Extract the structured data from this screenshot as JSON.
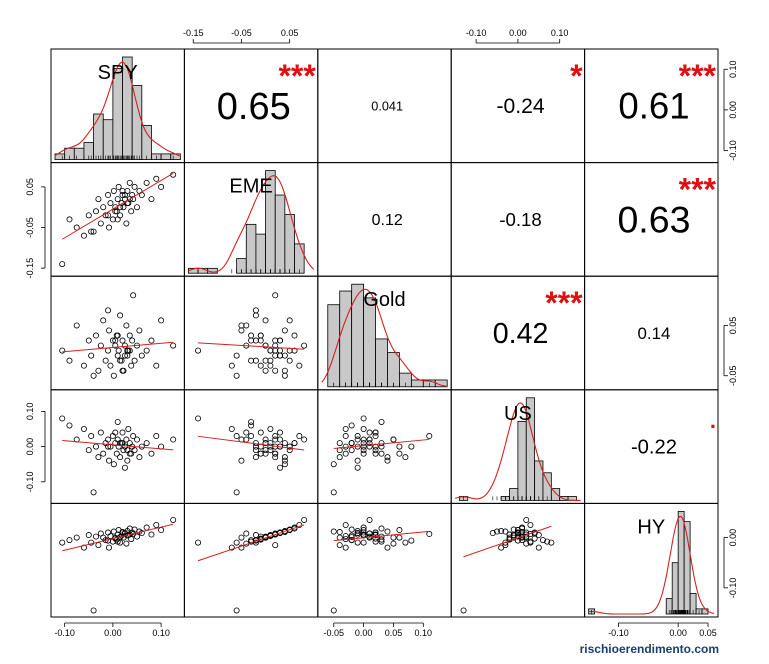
{
  "chart_data": {
    "type": "scatter-matrix",
    "variables": [
      "SPY",
      "EME",
      "Gold",
      "US",
      "HY"
    ],
    "watermark": "rischioerendimento.com",
    "axes": {
      "SPY": {
        "range": [
          -0.12,
          0.14
        ],
        "ticks": [
          -0.1,
          0.0,
          0.1
        ],
        "tick_labels": [
          "-0.10",
          "0.00",
          "0.10"
        ]
      },
      "EME": {
        "range": [
          -0.16,
          0.1
        ],
        "ticks": [
          -0.15,
          -0.05,
          0.05
        ],
        "tick_labels": [
          "-0.15",
          "-0.05",
          "0.05"
        ]
      },
      "Gold": {
        "range": [
          -0.07,
          0.14
        ],
        "ticks": [
          -0.05,
          0.0,
          0.05,
          0.1
        ],
        "tick_labels": [
          "-0.05",
          "0.00",
          "0.05",
          "0.10"
        ]
      },
      "US": {
        "range": [
          -0.15,
          0.15
        ],
        "ticks": [
          -0.1,
          0.0,
          0.1
        ],
        "tick_labels": [
          "-0.10",
          "0.00",
          "0.10"
        ]
      },
      "HY": {
        "range": [
          -0.15,
          0.06
        ],
        "ticks": [
          -0.1,
          0.0,
          0.05
        ],
        "tick_labels": [
          "-0.10",
          "0.00",
          "0.05"
        ]
      }
    },
    "top_axis_ticks": {
      "EME": [
        "-0.15",
        "-0.05",
        "0.05"
      ],
      "US": [
        "-0.10",
        "0.00",
        "0.10"
      ]
    },
    "bottom_axis_ticks": {
      "SPY": [
        "-0.10",
        "0.00",
        "0.10"
      ],
      "Gold": [
        "-0.05",
        "0.00",
        "0.05",
        "0.10"
      ],
      "HY": [
        "-0.10",
        "0.00",
        "0.05"
      ]
    },
    "right_axis_ticks": {
      "SPY": [
        "0.10",
        "0.00",
        "-0.10"
      ],
      "Gold": [
        "0.05",
        "-0.05"
      ],
      "HY": [
        "0.00",
        "-0.10"
      ]
    },
    "left_axis_ticks": {
      "EME": [
        "0.05",
        "-0.05",
        "-0.15"
      ],
      "US": [
        "0.10",
        "0.00",
        "-0.10"
      ]
    },
    "correlations": [
      {
        "row": 0,
        "col": 1,
        "value": "0.65",
        "stars": "***"
      },
      {
        "row": 0,
        "col": 2,
        "value": "0.041",
        "stars": ""
      },
      {
        "row": 0,
        "col": 3,
        "value": "-0.24",
        "stars": "*"
      },
      {
        "row": 0,
        "col": 4,
        "value": "0.61",
        "stars": "***"
      },
      {
        "row": 1,
        "col": 2,
        "value": "0.12",
        "stars": ""
      },
      {
        "row": 1,
        "col": 3,
        "value": "-0.18",
        "stars": ""
      },
      {
        "row": 1,
        "col": 4,
        "value": "0.63",
        "stars": "***"
      },
      {
        "row": 2,
        "col": 3,
        "value": "0.42",
        "stars": "***"
      },
      {
        "row": 2,
        "col": 4,
        "value": "0.14",
        "stars": ""
      },
      {
        "row": 3,
        "col": 4,
        "value": "-0.22",
        "stars": "."
      }
    ],
    "histograms": {
      "SPY": {
        "bins": [
          -0.12,
          -0.1,
          -0.08,
          -0.06,
          -0.04,
          -0.02,
          0.0,
          0.02,
          0.04,
          0.06,
          0.08,
          0.1,
          0.12,
          0.14
        ],
        "counts": [
          1,
          2,
          2,
          3,
          8,
          7,
          16,
          18,
          13,
          6,
          1,
          1,
          1
        ]
      },
      "EME": {
        "bins": [
          -0.16,
          -0.14,
          -0.12,
          -0.1,
          -0.08,
          -0.06,
          -0.04,
          -0.02,
          0.0,
          0.02,
          0.04,
          0.06,
          0.08
        ],
        "counts": [
          1,
          1,
          1,
          0,
          0,
          3,
          10,
          8,
          21,
          16,
          12,
          6
        ]
      },
      "Gold": {
        "bins": [
          -0.06,
          -0.04,
          -0.02,
          0.0,
          0.02,
          0.04,
          0.06,
          0.08,
          0.1,
          0.12,
          0.14
        ],
        "counts": [
          12,
          14,
          15,
          13,
          7,
          5,
          2,
          1,
          1,
          1
        ]
      },
      "US": {
        "bins": [
          -0.14,
          -0.12,
          -0.1,
          -0.08,
          -0.06,
          -0.04,
          -0.02,
          0.0,
          0.02,
          0.04,
          0.06,
          0.08,
          0.1,
          0.12,
          0.14
        ],
        "counts": [
          1,
          0,
          0,
          0,
          0,
          1,
          3,
          20,
          26,
          10,
          7,
          3,
          1,
          1
        ]
      },
      "HY": {
        "bins": [
          -0.15,
          -0.14,
          -0.13,
          -0.12,
          -0.11,
          -0.1,
          -0.09,
          -0.08,
          -0.07,
          -0.06,
          -0.05,
          -0.04,
          -0.03,
          -0.02,
          -0.01,
          0.0,
          0.01,
          0.02,
          0.03,
          0.04,
          0.05
        ],
        "counts": [
          1,
          0,
          0,
          0,
          0,
          0,
          0,
          0,
          0,
          0,
          0,
          0,
          0,
          3,
          10,
          20,
          18,
          4,
          1,
          1
        ]
      }
    },
    "observations": {
      "SPY": [
        -0.105,
        -0.09,
        -0.075,
        -0.06,
        -0.05,
        -0.045,
        -0.035,
        -0.03,
        -0.025,
        -0.02,
        -0.015,
        -0.01,
        -0.008,
        -0.005,
        0.0,
        0.002,
        0.005,
        0.008,
        0.01,
        0.012,
        0.015,
        0.018,
        0.02,
        0.022,
        0.025,
        0.028,
        0.03,
        0.032,
        0.035,
        0.038,
        0.04,
        0.042,
        0.045,
        0.05,
        0.055,
        0.06,
        0.07,
        0.08,
        0.09,
        0.1,
        0.125,
        -0.04,
        0.01,
        0.03,
        0.015,
        -0.01,
        0.025,
        0.005,
        0.035,
        0.02
      ],
      "EME": [
        -0.14,
        -0.03,
        -0.05,
        -0.07,
        -0.02,
        -0.06,
        -0.01,
        0.02,
        -0.04,
        0.0,
        -0.02,
        0.03,
        -0.05,
        0.01,
        -0.03,
        0.04,
        0.0,
        -0.01,
        0.02,
        0.05,
        -0.02,
        0.01,
        0.03,
        0.0,
        0.02,
        -0.04,
        0.04,
        0.01,
        0.06,
        -0.01,
        0.03,
        0.02,
        0.05,
        0.0,
        0.04,
        0.03,
        0.06,
        0.02,
        0.07,
        0.05,
        0.08,
        -0.06,
        -0.03,
        0.01,
        0.0,
        -0.02,
        0.03,
        -0.01,
        0.02,
        0.04
      ],
      "Gold": [
        0.0,
        -0.02,
        0.05,
        -0.03,
        0.02,
        -0.01,
        0.03,
        -0.04,
        0.01,
        0.06,
        -0.02,
        0.0,
        0.04,
        -0.03,
        0.02,
        -0.05,
        0.01,
        0.03,
        -0.01,
        0.0,
        0.07,
        -0.02,
        0.02,
        -0.04,
        0.01,
        0.05,
        -0.01,
        0.0,
        0.03,
        -0.03,
        0.02,
        0.11,
        -0.02,
        0.01,
        0.04,
        -0.01,
        0.0,
        0.02,
        -0.03,
        0.06,
        0.01,
        -0.05,
        0.03,
        0.0,
        -0.02,
        0.08,
        -0.01,
        0.02,
        0.0,
        -0.04
      ],
      "US": [
        0.08,
        0.06,
        0.02,
        0.05,
        -0.01,
        0.03,
        0.0,
        -0.03,
        0.04,
        -0.02,
        0.01,
        0.02,
        -0.04,
        0.0,
        0.03,
        -0.05,
        0.01,
        -0.02,
        0.02,
        0.0,
        -0.03,
        0.01,
        0.04,
        -0.01,
        0.0,
        0.02,
        -0.04,
        0.05,
        0.01,
        -0.02,
        0.0,
        0.03,
        -0.01,
        0.02,
        -0.03,
        0.0,
        0.01,
        -0.02,
        0.03,
        0.0,
        0.02,
        -0.13,
        0.07,
        -0.01,
        0.01,
        0.0,
        -0.06,
        0.04,
        -0.02,
        0.01
      ],
      "HY": [
        -0.01,
        -0.005,
        0.0,
        -0.02,
        0.005,
        -0.01,
        0.002,
        -0.015,
        0.008,
        0.0,
        -0.005,
        0.01,
        -0.02,
        0.003,
        -0.008,
        0.012,
        0.0,
        -0.004,
        0.006,
        0.015,
        -0.01,
        0.004,
        0.01,
        0.0,
        0.008,
        -0.012,
        0.013,
        0.005,
        0.018,
        -0.003,
        0.01,
        0.007,
        0.016,
        0.002,
        0.012,
        0.009,
        0.02,
        0.006,
        0.025,
        0.015,
        0.035,
        -0.145,
        -0.008,
        0.004,
        0.001,
        -0.006,
        0.009,
        -0.002,
        0.006,
        0.011
      ]
    }
  }
}
